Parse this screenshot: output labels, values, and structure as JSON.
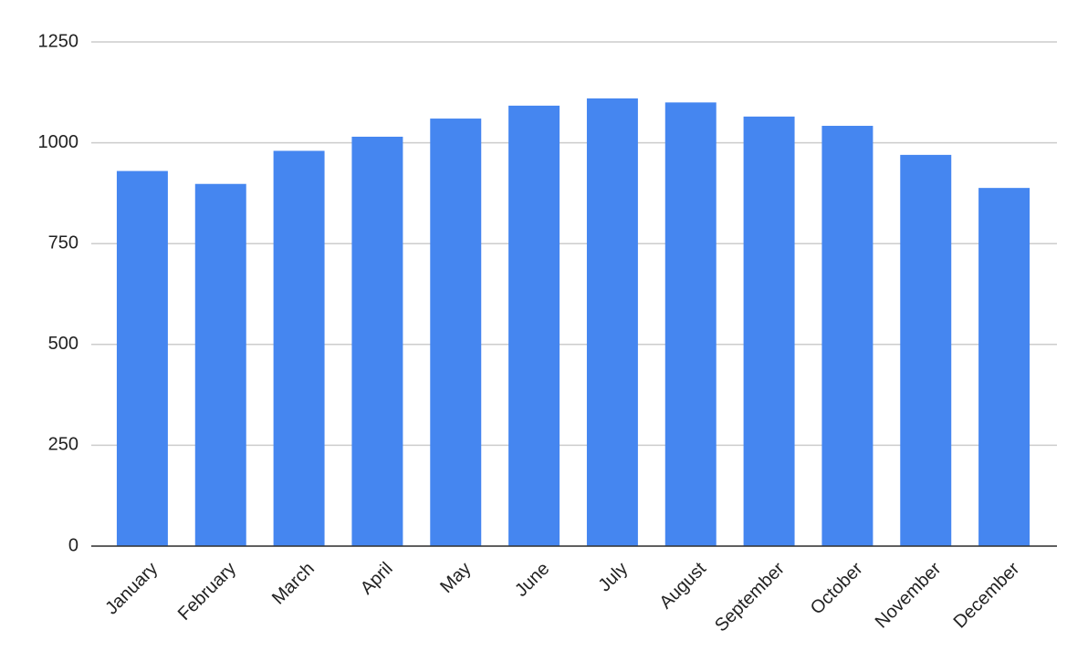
{
  "chart_data": {
    "type": "bar",
    "categories": [
      "January",
      "February",
      "March",
      "April",
      "May",
      "June",
      "July",
      "August",
      "September",
      "October",
      "November",
      "December"
    ],
    "values": [
      930,
      898,
      980,
      1015,
      1060,
      1092,
      1110,
      1100,
      1065,
      1042,
      970,
      888
    ],
    "color": "#4586f0",
    "ylim": [
      0,
      1250
    ],
    "yticks": [
      0,
      250,
      500,
      750,
      1000,
      1250
    ],
    "grid": true
  }
}
